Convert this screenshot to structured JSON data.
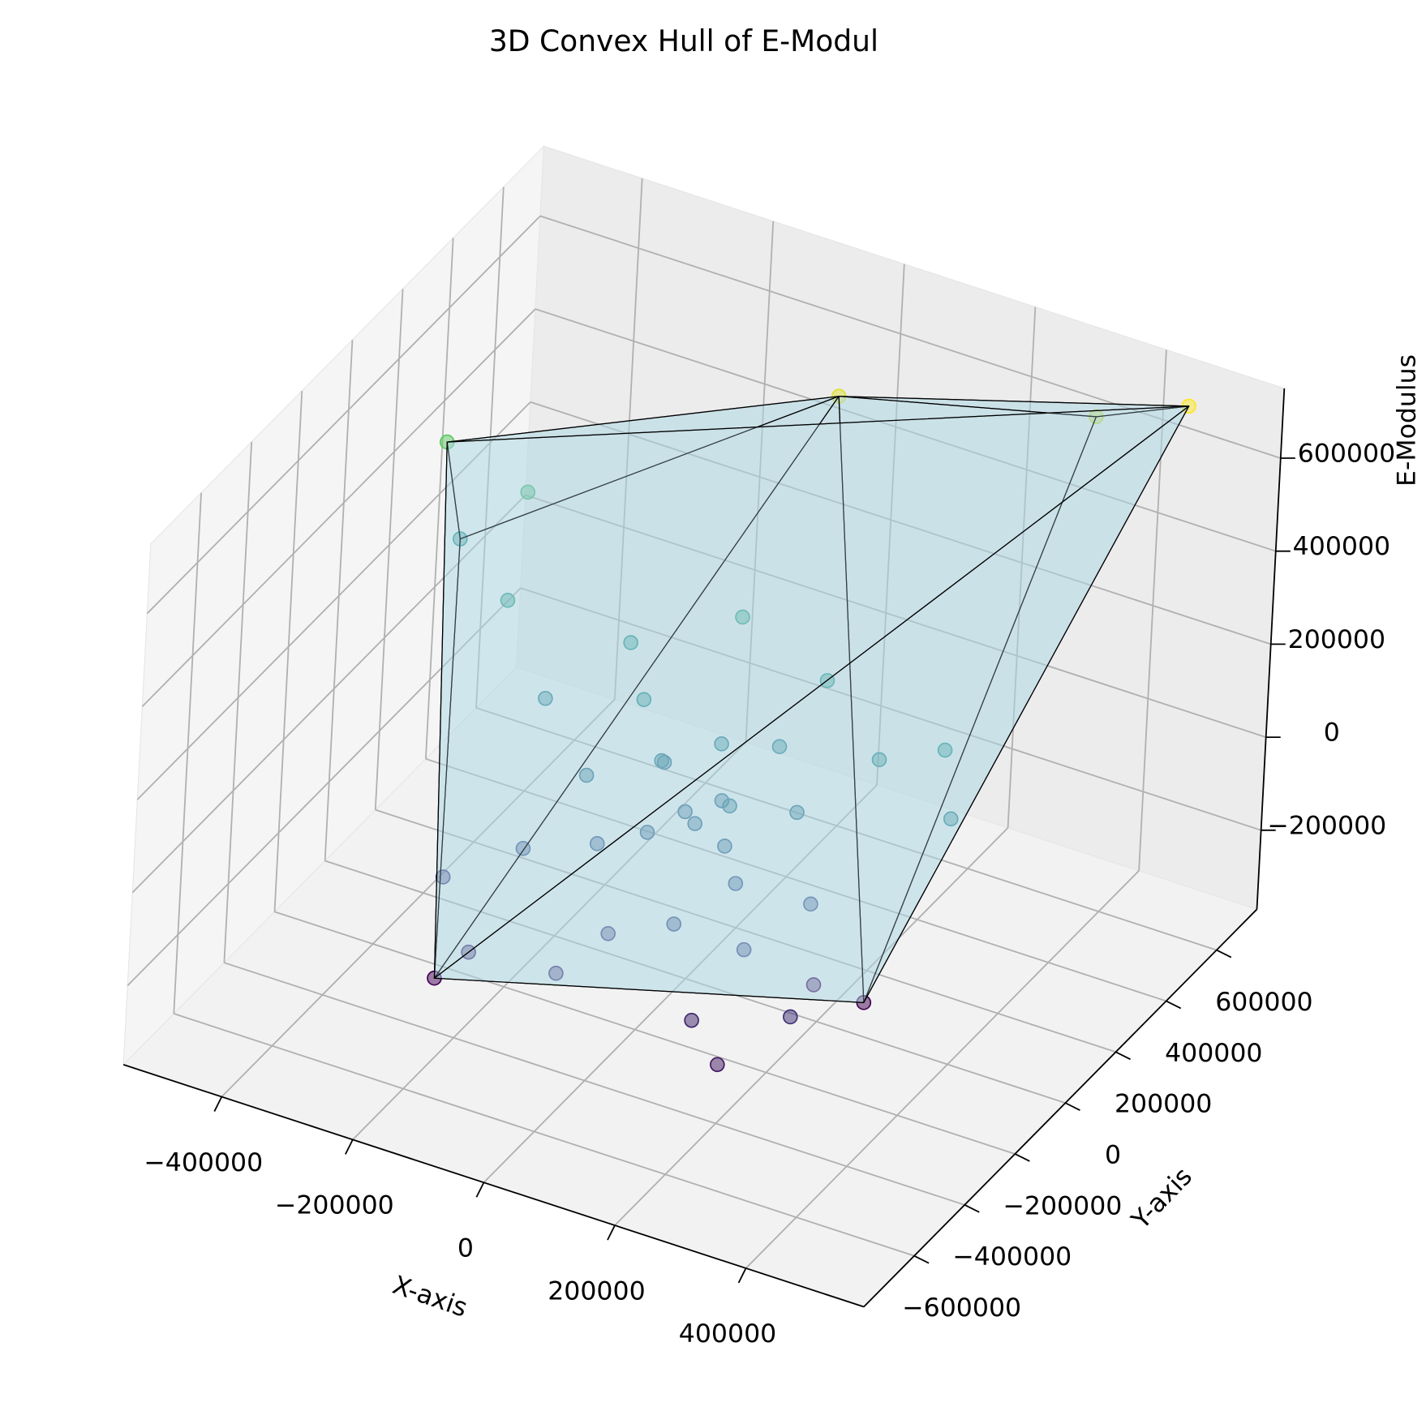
{
  "chart_data": {
    "type": "scatter3d",
    "title": "3D Convex Hull of E-Modul",
    "xlabel": "X-axis",
    "ylabel": "Y-axis",
    "zlabel": "E-Modulus",
    "x": [
      440000,
      0,
      -500000,
      -500000,
      -280000,
      243000,
      300000,
      175000,
      20000,
      60000,
      -40000,
      -100000,
      100000,
      -60000,
      140000,
      -150000,
      0,
      80000,
      -120000,
      50000,
      -30000,
      150000,
      -200000,
      200000,
      -250000,
      -180000,
      100000,
      -50000,
      220000,
      -300000,
      250000,
      -80000,
      120000,
      -350000,
      -400000,
      300000,
      350000,
      -220000,
      180000,
      30000,
      -10000,
      70000,
      -70000
    ],
    "y": [
      755000,
      515000,
      280000,
      356000,
      -270000,
      74000,
      760000,
      50000,
      -50000,
      -20000,
      -80000,
      -120000,
      -90000,
      20000,
      40000,
      -40000,
      100000,
      120000,
      100000,
      -200000,
      -250000,
      -180000,
      -150000,
      -50000,
      50000,
      200000,
      250000,
      300000,
      150000,
      -200000,
      -250000,
      -320000,
      -300000,
      150000,
      350000,
      200000,
      100000,
      -300000,
      -350000,
      30000,
      -10000,
      -60000,
      60000
    ],
    "z": [
      650000,
      600000,
      400000,
      150000,
      -350000,
      -350000,
      560000,
      -330000,
      0,
      40000,
      -30000,
      -60000,
      -70000,
      60000,
      30000,
      20000,
      80000,
      100000,
      120000,
      -120000,
      -150000,
      -140000,
      -100000,
      -90000,
      90000,
      160000,
      180000,
      220000,
      120000,
      -180000,
      -200000,
      -220000,
      -240000,
      200000,
      300000,
      150000,
      80000,
      -250000,
      -280000,
      10000,
      -10000,
      -20000,
      30000
    ],
    "cmap": "viridis",
    "hull_faces": [
      [
        2,
        0,
        1
      ],
      [
        0,
        1,
        6
      ],
      [
        1,
        6,
        5
      ],
      [
        0,
        6,
        5
      ],
      [
        2,
        1,
        3
      ],
      [
        3,
        1,
        4
      ],
      [
        1,
        4,
        5
      ],
      [
        2,
        3,
        4
      ],
      [
        2,
        4,
        0
      ],
      [
        4,
        5,
        0
      ]
    ],
    "hull_color": "#add8e6",
    "xlim": [
      -550000,
      580000
    ],
    "ylim": [
      -800000,
      760000
    ],
    "zlim": [
      -370000,
      750000
    ],
    "xticks": [
      {
        "value": -400000,
        "label": "−400000"
      },
      {
        "value": -200000,
        "label": "−200000"
      },
      0,
      200000,
      400000
    ],
    "yticks": [
      {
        "value": -600000,
        "label": "−600000"
      },
      {
        "value": -400000,
        "label": "−400000"
      },
      {
        "value": -200000,
        "label": "−200000"
      },
      0,
      200000,
      400000,
      600000
    ],
    "zticks": [
      {
        "value": -200000,
        "label": "−200000"
      },
      0,
      200000,
      400000,
      600000
    ],
    "grid": true
  }
}
